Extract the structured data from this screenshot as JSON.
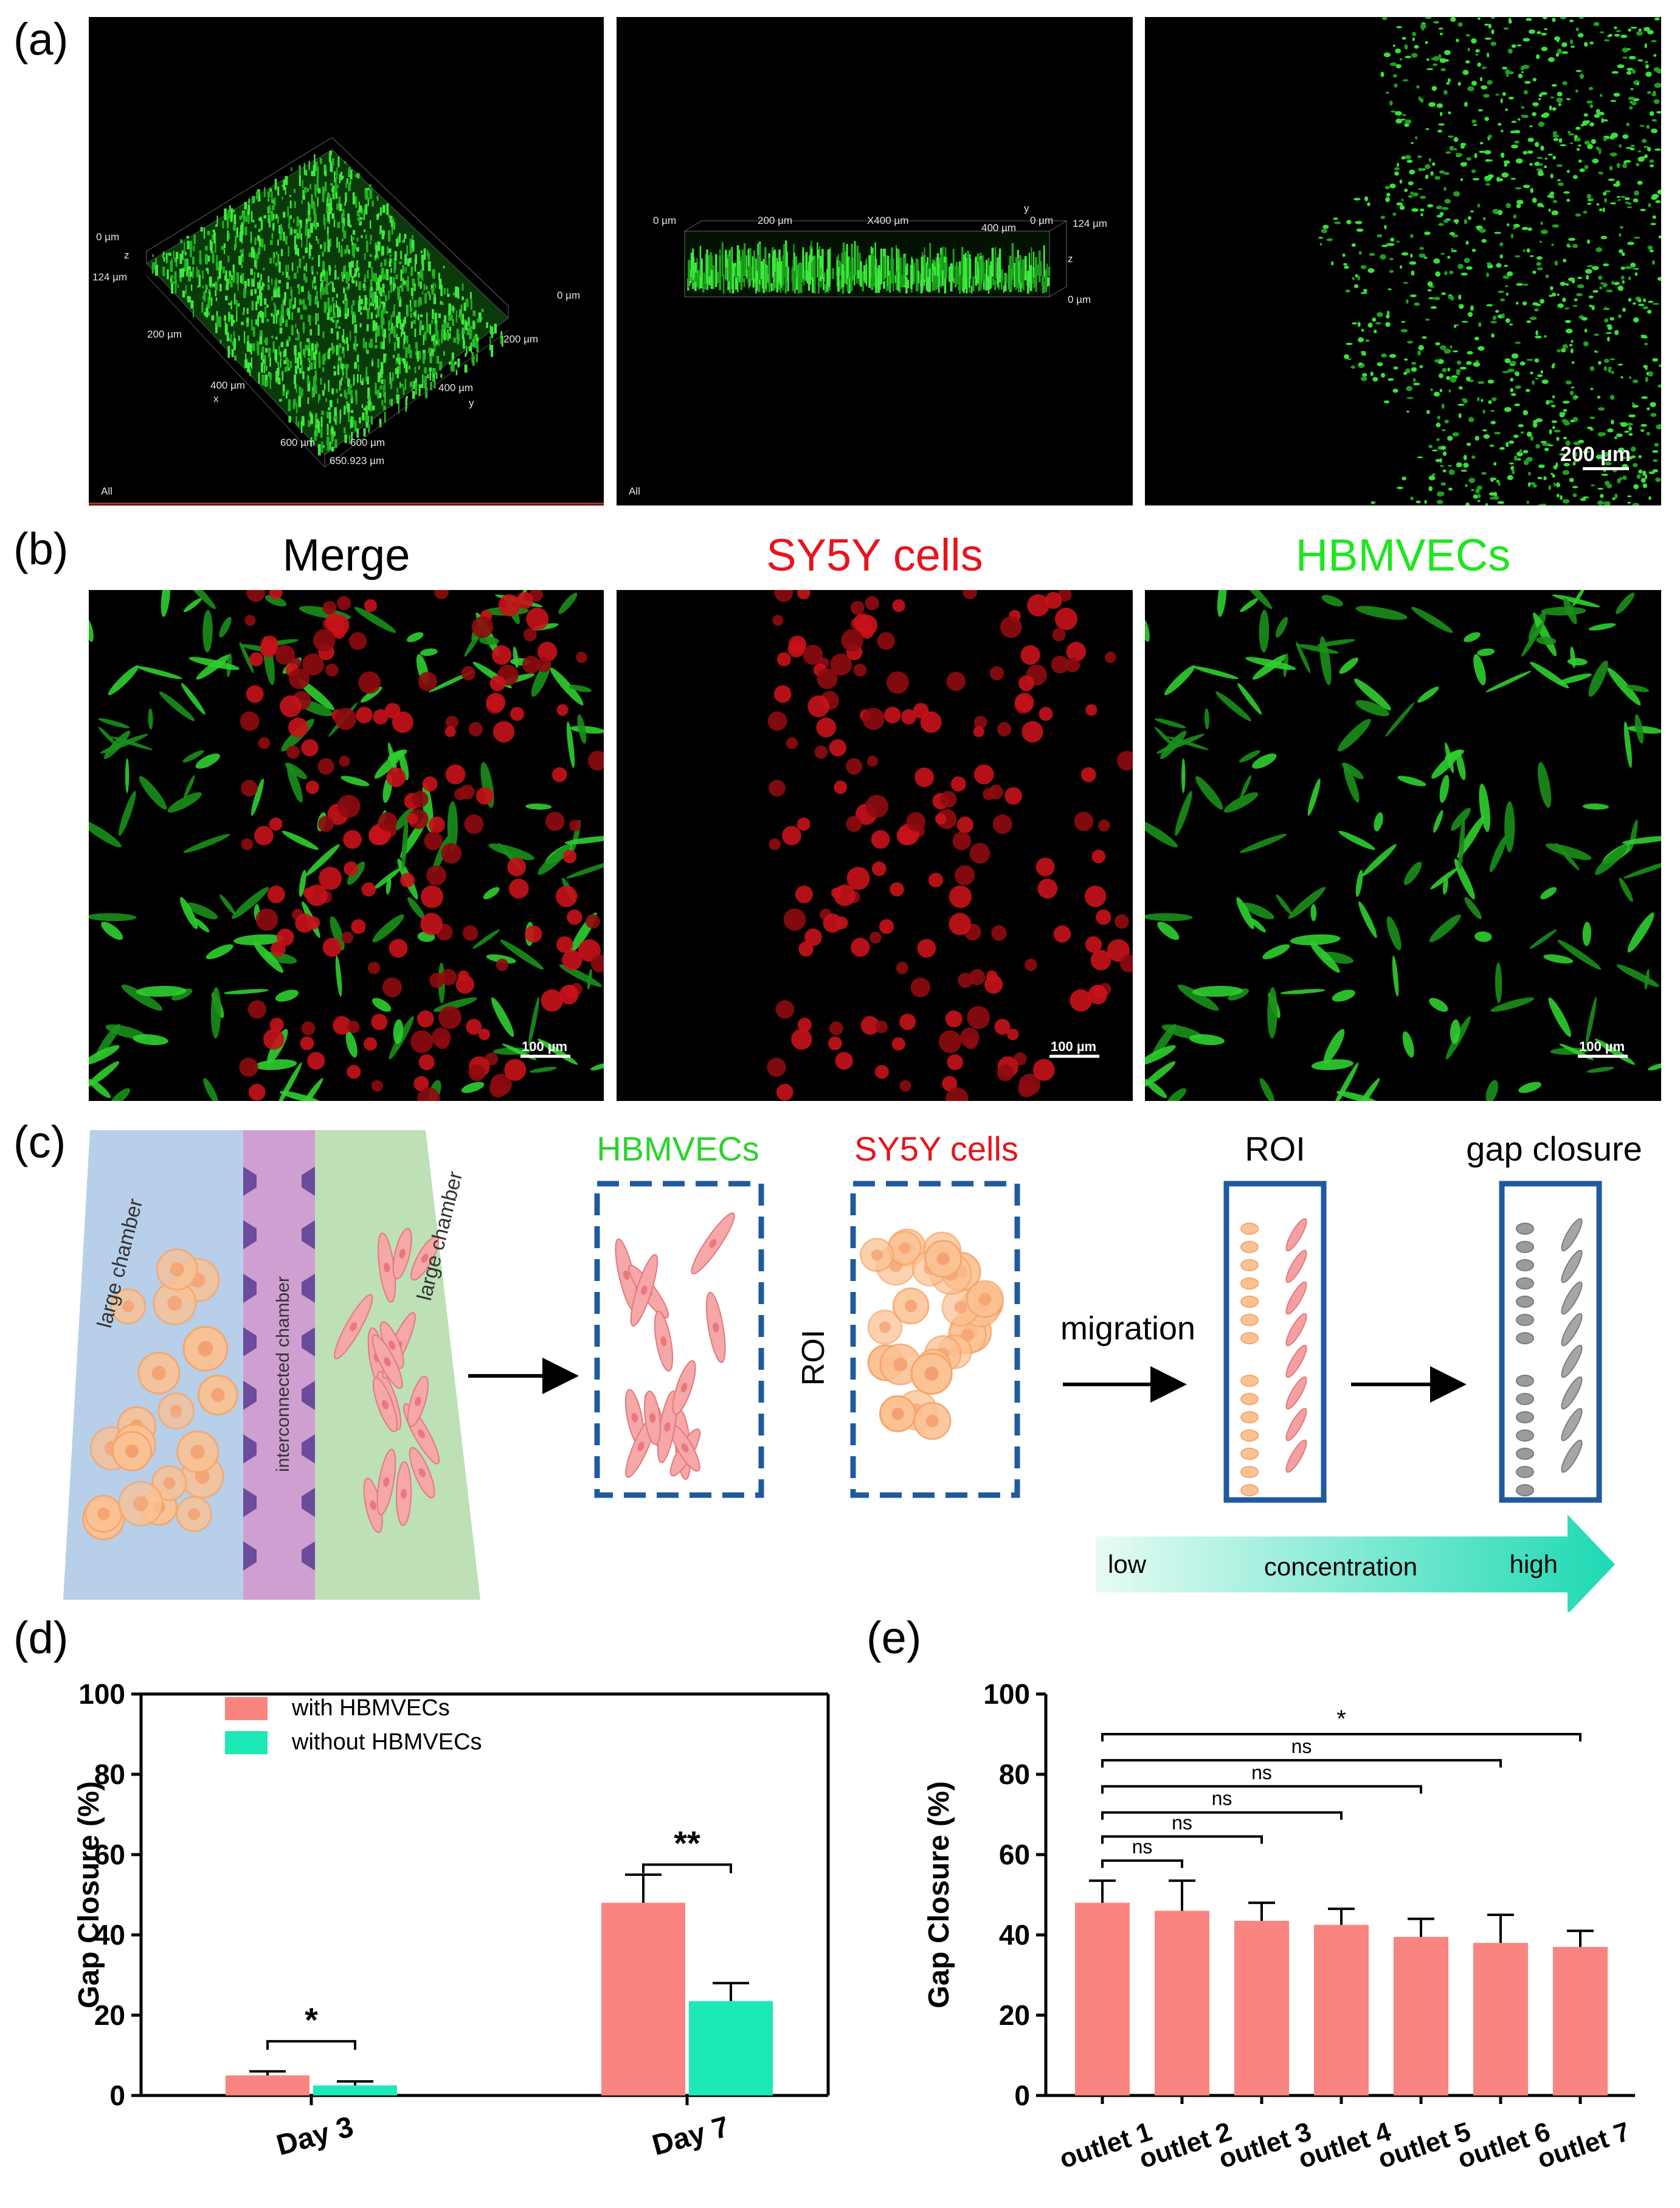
{
  "panels": {
    "a": {
      "letter": "(a)"
    },
    "b": {
      "letter": "(b)"
    },
    "c": {
      "letter": "(c)"
    },
    "d": {
      "letter": "(d)"
    },
    "e": {
      "letter": "(e)"
    }
  },
  "panel_a": {
    "view3d": {
      "z0": "0 µm",
      "z": "z",
      "z124": "124 µm",
      "x200": "200 µm",
      "x400": "400 µm",
      "x": "x",
      "x600": "600 µm",
      "x650": "650.923 µm",
      "y600": "600 µm",
      "y400": "400 µm",
      "y200": "200 µm",
      "y0": "0 µm",
      "y": "y",
      "corner": "All"
    },
    "side": {
      "t0": "0 µm",
      "t200": "200 µm",
      "tx400": "X400 µm",
      "t400": "400 µm",
      "ty": "y",
      "ty0": "0 µm",
      "r124": "124 µm",
      "rz": "z",
      "r0": "0 µm",
      "corner": "All"
    },
    "scale": "200 µm"
  },
  "panel_b": {
    "titles": [
      "Merge",
      "SY5Y cells",
      "HBMVECs"
    ],
    "title_colors": [
      "#000000",
      "#e8141b",
      "#1ee61e"
    ],
    "scale": "100 µm"
  },
  "panel_c": {
    "chamber_left": "large chamber",
    "chamber_mid": "interconnected chamber",
    "chamber_right": "large chamber",
    "hbmvecs_label": "HBMVECs",
    "sy5y_label": "SY5Y cells",
    "roi_vertical": "ROI",
    "migration": "migration",
    "roi": "ROI",
    "gap_closure": "gap closure",
    "colors": {
      "green_text": "#2bd32b",
      "red_text": "#e8141b",
      "box": "#1f5a9e"
    }
  },
  "gradient_bar": {
    "low": "low",
    "mid": "concentration",
    "high": "high"
  },
  "chart_data": [
    {
      "type": "bar",
      "categories": [
        "Day 3",
        "Day 7"
      ],
      "series": [
        {
          "name": "with HBMVECs",
          "values": [
            5,
            48
          ],
          "errors": [
            1,
            7
          ],
          "color": "#f98480"
        },
        {
          "name": "without HBMVECs",
          "values": [
            2.5,
            23.5
          ],
          "errors": [
            1,
            4.5
          ],
          "color": "#1de9b6"
        }
      ],
      "ylabel": "Gap Closure (%)",
      "ylim": [
        0,
        100
      ],
      "yticks": [
        "0",
        "20",
        "40",
        "60",
        "80",
        "100"
      ],
      "legend_position": "top-left",
      "significance": [
        "*",
        "**"
      ]
    },
    {
      "type": "bar",
      "categories": [
        "outlet 1",
        "outlet 2",
        "outlet 3",
        "outlet 4",
        "outlet 5",
        "outlet 6",
        "outlet 7"
      ],
      "values": [
        48,
        46,
        43.5,
        42.5,
        39.5,
        38,
        37
      ],
      "errors": [
        5.5,
        7.5,
        4.5,
        4,
        4.5,
        7,
        4
      ],
      "color": "#f98480",
      "ylabel": "Gap Closure (%)",
      "ylim": [
        0,
        100
      ],
      "yticks": [
        "0",
        "20",
        "40",
        "60",
        "80",
        "100"
      ],
      "comparisons": [
        {
          "from": 1,
          "to": 2,
          "label": "ns"
        },
        {
          "from": 1,
          "to": 3,
          "label": "ns"
        },
        {
          "from": 1,
          "to": 4,
          "label": "ns"
        },
        {
          "from": 1,
          "to": 5,
          "label": "ns"
        },
        {
          "from": 1,
          "to": 6,
          "label": "ns"
        },
        {
          "from": 1,
          "to": 7,
          "label": "*"
        }
      ]
    }
  ]
}
